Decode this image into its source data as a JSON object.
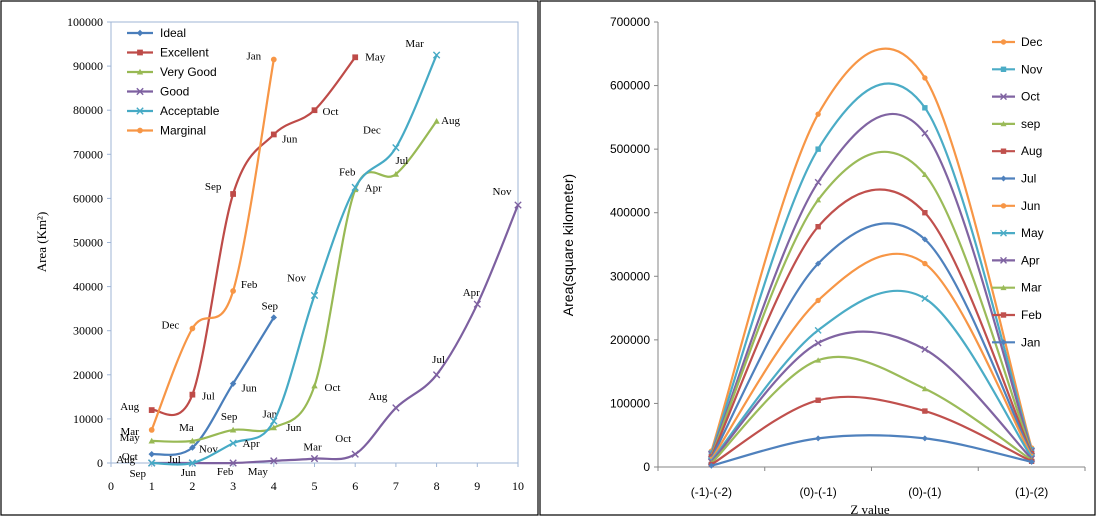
{
  "chart_data": [
    {
      "type": "line",
      "ylabel": "Area (Km²)",
      "xlim": [
        0,
        10
      ],
      "ylim": [
        0,
        100000
      ],
      "x_ticks": [
        "0",
        "1",
        "2",
        "3",
        "4",
        "5",
        "6",
        "7",
        "8",
        "9",
        "10"
      ],
      "y_ticks": [
        "0",
        "10000",
        "20000",
        "30000",
        "40000",
        "50000",
        "60000",
        "70000",
        "80000",
        "90000",
        "100000"
      ],
      "legend_position": "top-left",
      "grid": false,
      "series": [
        {
          "name": "Ideal",
          "color": "#4a7ebb",
          "marker": "diamond",
          "points": [
            [
              1,
              2000,
              "Oct"
            ],
            [
              2,
              3500,
              "Nov"
            ],
            [
              3,
              18000,
              "Jun"
            ],
            [
              4,
              33000,
              "Sep"
            ]
          ]
        },
        {
          "name": "Excellent",
          "color": "#be4b48",
          "marker": "square",
          "points": [
            [
              1,
              12000,
              "Aug"
            ],
            [
              2,
              15500,
              "Jul"
            ],
            [
              3,
              61000,
              "Sep"
            ],
            [
              4,
              74500,
              "Jun"
            ],
            [
              5,
              80000,
              "Oct"
            ],
            [
              6,
              92000,
              "May"
            ]
          ]
        },
        {
          "name": "Very Good",
          "color": "#98b954",
          "marker": "triangle",
          "points": [
            [
              1,
              5000,
              "May"
            ],
            [
              2,
              5000,
              "Ma"
            ],
            [
              3,
              7500,
              "Sep"
            ],
            [
              4,
              8000,
              "Jan"
            ],
            [
              5,
              17500,
              "Oct"
            ],
            [
              6,
              62000,
              "Apr"
            ],
            [
              7,
              65500,
              "Jul"
            ],
            [
              8,
              77500,
              "Aug"
            ]
          ]
        },
        {
          "name": "Good",
          "color": "#7d60a0",
          "marker": "x",
          "points": [
            [
              1,
              0,
              "Sep"
            ],
            [
              2,
              0,
              "Jun"
            ],
            [
              3,
              0,
              "Feb"
            ],
            [
              4,
              500,
              "May"
            ],
            [
              5,
              1000,
              "Mar"
            ],
            [
              6,
              2000,
              "Oct"
            ],
            [
              7,
              12500,
              "Aug"
            ],
            [
              8,
              20000,
              "Jul"
            ],
            [
              9,
              36000,
              "Apr"
            ],
            [
              10,
              58500,
              "Nov"
            ]
          ]
        },
        {
          "name": "Acceptable",
          "color": "#46aac5",
          "marker": "x",
          "points": [
            [
              1,
              0,
              "Aug"
            ],
            [
              2,
              0,
              "Jul"
            ],
            [
              3,
              4500,
              "Apr"
            ],
            [
              4,
              9500,
              "Jun"
            ],
            [
              5,
              38000,
              "Nov"
            ],
            [
              6,
              62500,
              "Feb"
            ],
            [
              7,
              71500,
              "Dec"
            ],
            [
              8,
              92500,
              "Mar"
            ]
          ]
        },
        {
          "name": "Marginal",
          "color": "#f79646",
          "marker": "circle",
          "points": [
            [
              1,
              7500,
              "Mar"
            ],
            [
              2,
              30500,
              "Dec"
            ],
            [
              3,
              39000,
              "Feb"
            ],
            [
              4,
              91500,
              "Jan"
            ]
          ]
        }
      ]
    },
    {
      "type": "line",
      "xlabel": "Z value",
      "ylabel": "Area(square kilometer)",
      "categories": [
        "(-1)-(-2)",
        "(0)-(-1)",
        "(0)-(1)",
        "(1)-(2)"
      ],
      "ylim": [
        0,
        700000
      ],
      "y_ticks": [
        "0",
        "100000",
        "200000",
        "300000",
        "400000",
        "500000",
        "600000",
        "700000"
      ],
      "legend_position": "right",
      "grid": false,
      "series": [
        {
          "name": "Dec",
          "color": "#f79646",
          "marker": "circle",
          "values": [
            25000,
            555000,
            612000,
            30000
          ]
        },
        {
          "name": "Nov",
          "color": "#4bacc6",
          "marker": "square",
          "values": [
            22000,
            500000,
            565000,
            27000
          ]
        },
        {
          "name": "Oct",
          "color": "#8064a2",
          "marker": "x",
          "values": [
            20000,
            448000,
            525000,
            25000
          ]
        },
        {
          "name": "sep",
          "color": "#9bbb59",
          "marker": "triangle",
          "values": [
            18000,
            420000,
            460000,
            23000
          ]
        },
        {
          "name": "Aug",
          "color": "#c0504d",
          "marker": "square",
          "values": [
            16000,
            378000,
            400000,
            21000
          ]
        },
        {
          "name": "Jul",
          "color": "#4f81bd",
          "marker": "diamond",
          "values": [
            14000,
            320000,
            358000,
            19000
          ]
        },
        {
          "name": "Jun",
          "color": "#f79646",
          "marker": "circle",
          "values": [
            12000,
            262000,
            320000,
            17000
          ]
        },
        {
          "name": "May",
          "color": "#4bacc6",
          "marker": "x",
          "values": [
            10000,
            215000,
            265000,
            15000
          ]
        },
        {
          "name": "Apr",
          "color": "#8064a2",
          "marker": "x",
          "values": [
            8000,
            195000,
            185000,
            13000
          ]
        },
        {
          "name": "Mar",
          "color": "#9bbb59",
          "marker": "triangle",
          "values": [
            6000,
            168000,
            123000,
            11000
          ]
        },
        {
          "name": "Feb",
          "color": "#c0504d",
          "marker": "square",
          "values": [
            4000,
            105000,
            88000,
            9000
          ]
        },
        {
          "name": "Jan",
          "color": "#4f81bd",
          "marker": "diamond",
          "values": [
            2000,
            45000,
            45000,
            8000
          ]
        }
      ]
    }
  ]
}
